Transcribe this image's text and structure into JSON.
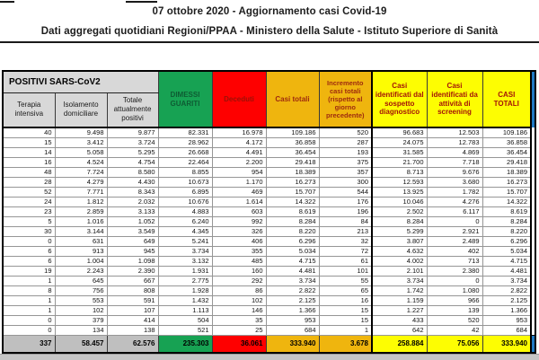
{
  "document": {
    "title_line1": "07 ottobre 2020 - Aggiornamento casi Covid-19",
    "title_line2": "Dati aggregati quotidiani Regioni/PPAA - Ministero della Salute - Istituto Superiore di Sanità"
  },
  "table": {
    "group_header": "POSITIVI SARS-CoV2",
    "sub_headers": [
      "Terapia intensiva",
      "Isolamento domiciliare",
      "Totale attualmente positivi"
    ],
    "column_headers": [
      "DIMESSI GUARITI",
      "Deceduti",
      "Casi totali",
      "Incremento casi totali (rispetto al giorno precedente)",
      "Casi identificati dal sospetto diagnostico",
      "Casi identificati da attività di screening",
      "CASI TOTALI"
    ],
    "rows": [
      [
        "40",
        "9.498",
        "9.877",
        "82.331",
        "16.978",
        "109.186",
        "520",
        "96.683",
        "12.503",
        "109.186"
      ],
      [
        "15",
        "3.412",
        "3.724",
        "28.962",
        "4.172",
        "36.858",
        "287",
        "24.075",
        "12.783",
        "36.858"
      ],
      [
        "14",
        "5.058",
        "5.295",
        "26.668",
        "4.491",
        "36.454",
        "193",
        "31.585",
        "4.869",
        "36.454"
      ],
      [
        "16",
        "4.524",
        "4.754",
        "22.464",
        "2.200",
        "29.418",
        "375",
        "21.700",
        "7.718",
        "29.418"
      ],
      [
        "48",
        "7.724",
        "8.580",
        "8.855",
        "954",
        "18.389",
        "357",
        "8.713",
        "9.676",
        "18.389"
      ],
      [
        "28",
        "4.279",
        "4.430",
        "10.673",
        "1.170",
        "16.273",
        "300",
        "12.593",
        "3.680",
        "16.273"
      ],
      [
        "52",
        "7.771",
        "8.343",
        "6.895",
        "469",
        "15.707",
        "544",
        "13.925",
        "1.782",
        "15.707"
      ],
      [
        "24",
        "1.812",
        "2.032",
        "10.676",
        "1.614",
        "14.322",
        "176",
        "10.046",
        "4.276",
        "14.322"
      ],
      [
        "23",
        "2.859",
        "3.133",
        "4.883",
        "603",
        "8.619",
        "196",
        "2.502",
        "6.117",
        "8.619"
      ],
      [
        "5",
        "1.016",
        "1.052",
        "6.240",
        "992",
        "8.284",
        "84",
        "8.284",
        "0",
        "8.284"
      ],
      [
        "30",
        "3.144",
        "3.549",
        "4.345",
        "326",
        "8.220",
        "213",
        "5.299",
        "2.921",
        "8.220"
      ],
      [
        "0",
        "631",
        "649",
        "5.241",
        "406",
        "6.296",
        "32",
        "3.807",
        "2.489",
        "6.296"
      ],
      [
        "6",
        "913",
        "945",
        "3.734",
        "355",
        "5.034",
        "72",
        "4.632",
        "402",
        "5.034"
      ],
      [
        "6",
        "1.004",
        "1.098",
        "3.132",
        "485",
        "4.715",
        "61",
        "4.002",
        "713",
        "4.715"
      ],
      [
        "19",
        "2.243",
        "2.390",
        "1.931",
        "160",
        "4.481",
        "101",
        "2.101",
        "2.380",
        "4.481"
      ],
      [
        "1",
        "645",
        "667",
        "2.775",
        "292",
        "3.734",
        "55",
        "3.734",
        "0",
        "3.734"
      ],
      [
        "8",
        "756",
        "808",
        "1.928",
        "86",
        "2.822",
        "65",
        "1.742",
        "1.080",
        "2.822"
      ],
      [
        "1",
        "553",
        "591",
        "1.432",
        "102",
        "2.125",
        "16",
        "1.159",
        "966",
        "2.125"
      ],
      [
        "1",
        "102",
        "107",
        "1.113",
        "146",
        "1.366",
        "15",
        "1.227",
        "139",
        "1.366"
      ],
      [
        "0",
        "379",
        "414",
        "504",
        "35",
        "953",
        "15",
        "433",
        "520",
        "953"
      ],
      [
        "0",
        "134",
        "138",
        "521",
        "25",
        "684",
        "1",
        "642",
        "42",
        "684"
      ]
    ],
    "totals": [
      "337",
      "58.457",
      "62.576",
      "235.303",
      "36.061",
      "333.940",
      "3.678",
      "258.884",
      "75.056",
      "333.940"
    ]
  },
  "colors": {
    "recovered_green": "#17A253",
    "deaths_red": "#FE0000",
    "orange": "#EFB50E",
    "yellow": "#FDFD02",
    "blue_edge": "#1F7AC4",
    "header_gray": "#D8D8D8",
    "totals_gray": "#BFBFBF"
  }
}
